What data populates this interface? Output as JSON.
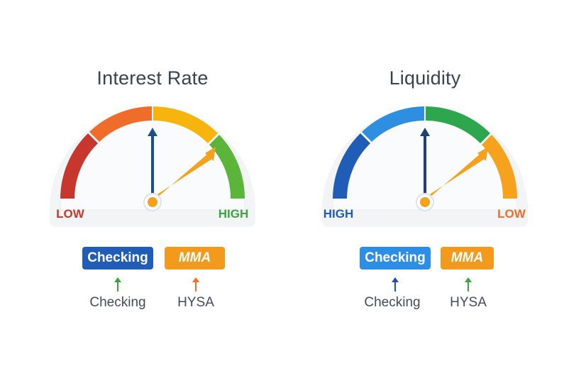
{
  "panels": [
    {
      "title": "Interest Rate",
      "gauge": {
        "left_label": "LOW",
        "right_label": "HIGH",
        "left_label_color": "#c8372e",
        "right_label_color": "#3aa53f",
        "segment_colors": [
          "#c8372e",
          "#ef6c2a",
          "#f6b40d",
          "#5cb53b"
        ]
      },
      "badges": [
        {
          "label": "Checking",
          "color": "#1f5db6"
        },
        {
          "label": "MMA",
          "color": "#f39a1c"
        }
      ],
      "captions": [
        {
          "label": "Checking",
          "arrow_color": "#3aa53f",
          "arrow_icon": "arrow-up-icon"
        },
        {
          "label": "HYSA",
          "arrow_color": "#ef6c2a",
          "arrow_icon": "arrow-up-icon"
        }
      ]
    },
    {
      "title": "Liquidity",
      "gauge": {
        "left_label": "HIGH",
        "right_label": "LOW",
        "left_label_color": "#1f5db6",
        "right_label_color": "#ef6c2a",
        "segment_colors": [
          "#1f5db6",
          "#2e8ee0",
          "#2ea64e",
          "#f7a21c"
        ]
      },
      "badges": [
        {
          "label": "Checking",
          "color": "#2d8ee8"
        },
        {
          "label": "MMA",
          "color": "#f39a1c"
        }
      ],
      "captions": [
        {
          "label": "Checking",
          "arrow_color": "#1f4fa0",
          "arrow_icon": "arrow-up-icon"
        },
        {
          "label": "HYSA",
          "arrow_color": "#3aa53f",
          "arrow_icon": "arrow-up-icon"
        }
      ]
    }
  ],
  "needles": {
    "vertical_color": "#1f4f8a",
    "angled_color": "#f4a11e"
  }
}
